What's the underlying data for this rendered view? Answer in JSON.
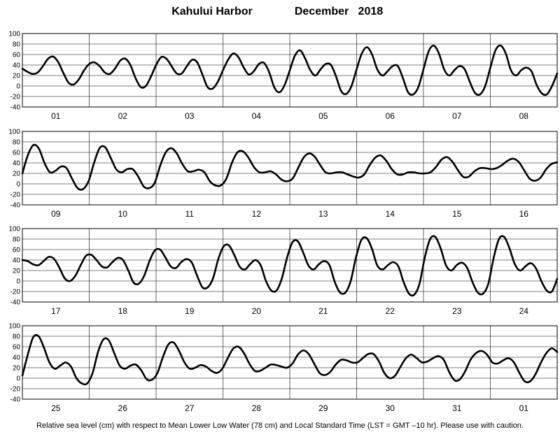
{
  "title_station": "Kahului Harbor",
  "title_period": "December   2018",
  "footnote": "Relative sea level (cm) with respect to Mean Lower Low Water (78 cm) and Local Standard Time (LST = GMT –10 hr). Please use with caution.",
  "chart_data": {
    "type": "line",
    "ylim": [
      -40,
      100
    ],
    "yticks": [
      -40,
      -20,
      0,
      20,
      40,
      60,
      80,
      100
    ],
    "grid": true,
    "panels": [
      {
        "days": [
          "01",
          "02",
          "03",
          "04",
          "05",
          "06",
          "07",
          "08"
        ],
        "series": [
          {
            "values": [
              33,
              27,
              23,
              26,
              38,
              52,
              56,
              45,
              24,
              6,
              3,
              13,
              30,
              42,
              45,
              38,
              26,
              23,
              33,
              48,
              52,
              40,
              15,
              -2,
              0,
              18,
              40,
              55,
              52,
              38,
              24,
              24,
              38,
              50,
              45,
              22,
              -2,
              -5,
              8,
              30,
              50,
              62,
              55,
              36,
              22,
              28,
              42,
              44,
              26,
              -3,
              -12,
              2,
              30,
              58,
              68,
              52,
              30,
              20,
              32,
              42,
              40,
              18,
              -10,
              -15,
              0,
              32,
              62,
              74,
              60,
              32,
              20,
              28,
              38,
              38,
              15,
              -12,
              -16,
              -2,
              32,
              66,
              77,
              62,
              32,
              20,
              30,
              38,
              32,
              8,
              -13,
              -16,
              0,
              35,
              68,
              77,
              62,
              30,
              20,
              30,
              35,
              28,
              2,
              -14,
              -16,
              0,
              24
            ]
          }
        ]
      },
      {
        "days": [
          "09",
          "10",
          "11",
          "12",
          "13",
          "14",
          "15",
          "16"
        ],
        "series": [
          {
            "values": [
              20,
              55,
              74,
              67,
              40,
              22,
              25,
              33,
              30,
              10,
              -8,
              -10,
              5,
              40,
              68,
              70,
              50,
              28,
              22,
              28,
              28,
              14,
              -5,
              -8,
              2,
              35,
              60,
              68,
              58,
              38,
              24,
              24,
              27,
              22,
              5,
              -3,
              -3,
              10,
              40,
              60,
              62,
              50,
              32,
              22,
              22,
              24,
              18,
              8,
              5,
              10,
              30,
              50,
              58,
              52,
              36,
              22,
              20,
              22,
              22,
              18,
              14,
              12,
              18,
              36,
              50,
              54,
              44,
              28,
              18,
              18,
              22,
              22,
              20,
              20,
              22,
              32,
              46,
              51,
              42,
              26,
              13,
              14,
              24,
              30,
              30,
              28,
              30,
              36,
              44,
              48,
              42,
              26,
              10,
              6,
              12,
              28,
              38,
              41
            ]
          }
        ]
      },
      {
        "days": [
          "17",
          "18",
          "19",
          "20",
          "21",
          "22",
          "23",
          "24"
        ],
        "series": [
          {
            "values": [
              40,
              38,
              32,
              30,
              38,
              46,
              42,
              25,
              5,
              0,
              10,
              30,
              48,
              50,
              40,
              28,
              26,
              36,
              44,
              40,
              20,
              -3,
              -5,
              10,
              38,
              58,
              60,
              45,
              28,
              25,
              36,
              42,
              35,
              10,
              -12,
              -12,
              5,
              42,
              66,
              68,
              50,
              28,
              22,
              32,
              40,
              30,
              0,
              -18,
              -18,
              5,
              45,
              74,
              76,
              55,
              30,
              22,
              32,
              38,
              30,
              -2,
              -22,
              -22,
              0,
              45,
              78,
              82,
              62,
              30,
              22,
              30,
              36,
              28,
              -2,
              -24,
              -26,
              -5,
              45,
              80,
              84,
              62,
              30,
              20,
              30,
              35,
              25,
              -2,
              -22,
              -24,
              -5,
              44,
              80,
              84,
              62,
              32,
              20,
              28,
              34,
              24,
              0,
              -18,
              -20,
              4
            ]
          }
        ]
      },
      {
        "days": [
          "25",
          "26",
          "27",
          "28",
          "29",
          "30",
          "31",
          "01"
        ],
        "series": [
          {
            "values": [
              5,
              45,
              78,
              80,
              58,
              30,
              18,
              24,
              30,
              22,
              0,
              -10,
              -10,
              10,
              50,
              74,
              72,
              48,
              24,
              18,
              24,
              26,
              15,
              -2,
              -3,
              10,
              40,
              64,
              68,
              52,
              30,
              18,
              20,
              25,
              22,
              14,
              10,
              18,
              38,
              56,
              60,
              48,
              28,
              14,
              14,
              20,
              26,
              25,
              22,
              20,
              28,
              45,
              53,
              46,
              28,
              10,
              6,
              12,
              26,
              35,
              34,
              30,
              30,
              38,
              46,
              46,
              32,
              10,
              0,
              5,
              22,
              38,
              45,
              38,
              30,
              32,
              38,
              42,
              35,
              12,
              -4,
              -2,
              14,
              36,
              48,
              52,
              45,
              30,
              28,
              34,
              38,
              30,
              10,
              -6,
              -6,
              8,
              30,
              48,
              57,
              50
            ]
          }
        ]
      }
    ]
  }
}
